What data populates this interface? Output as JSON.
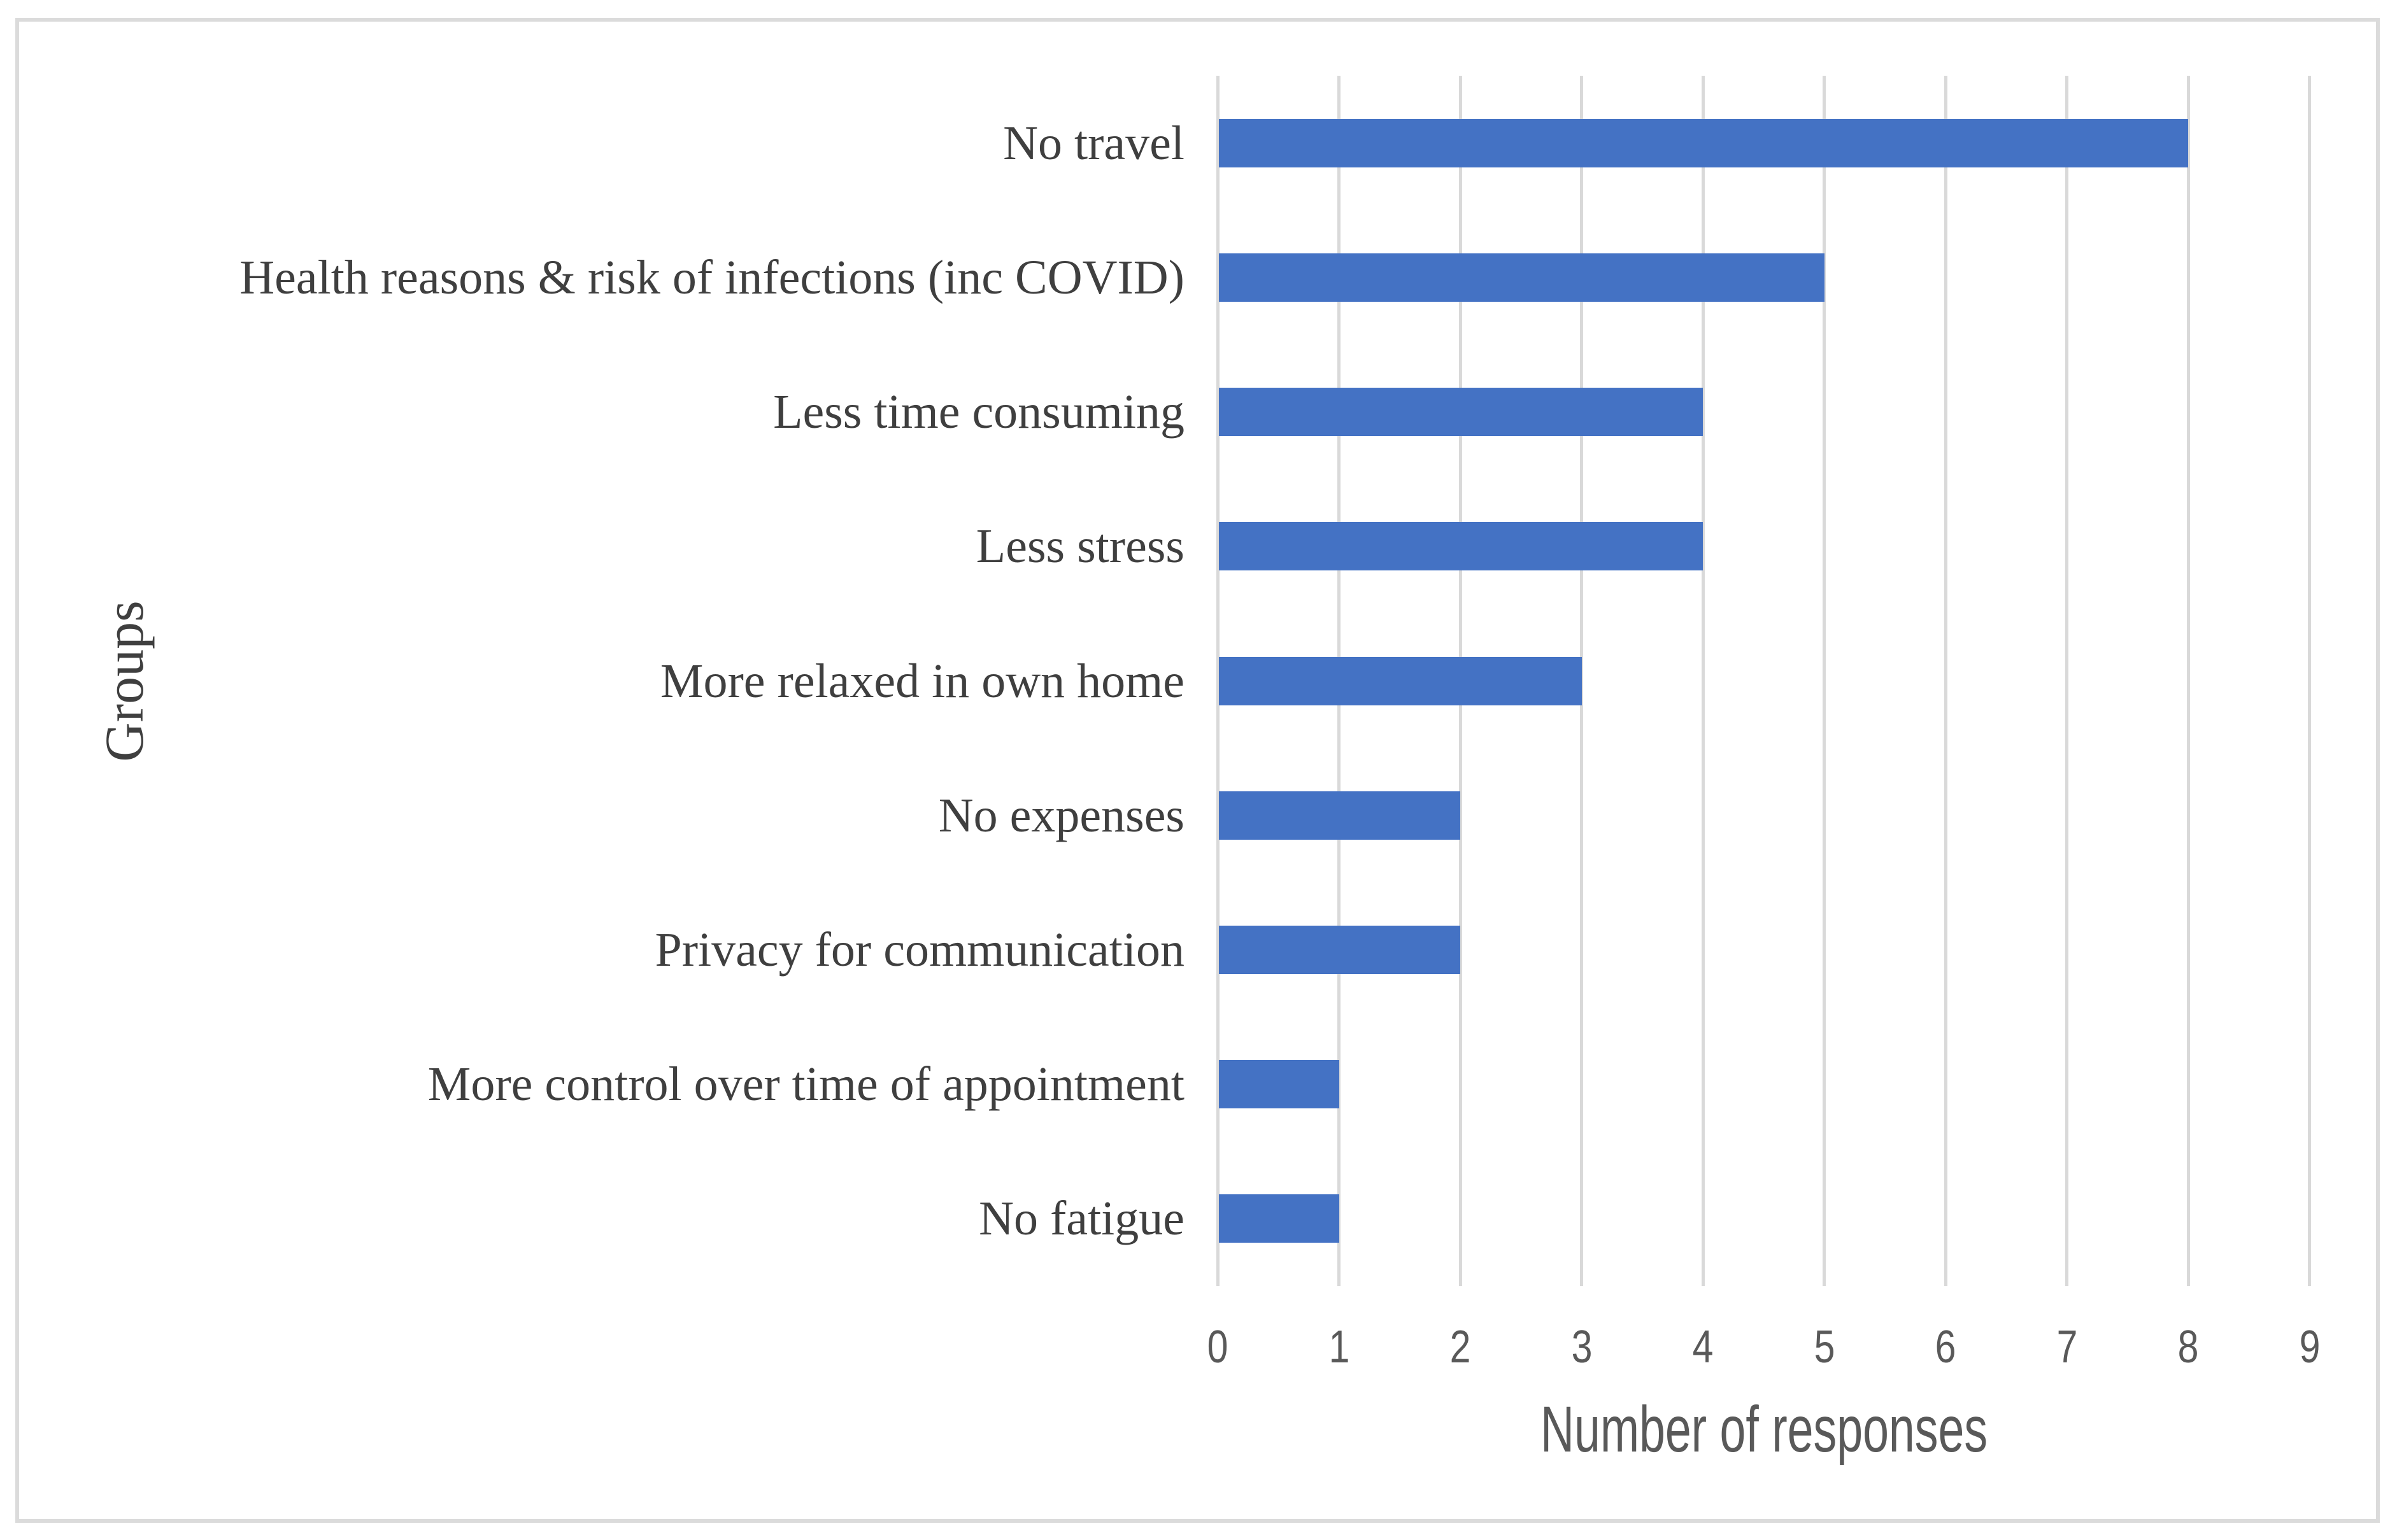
{
  "chart_data": {
    "type": "bar",
    "orientation": "horizontal",
    "title": "",
    "xlabel": "Number of responses",
    "ylabel": "Groups",
    "categories": [
      "No travel",
      "Health reasons & risk of infections (inc COVID)",
      "Less time consuming",
      "Less stress",
      "More relaxed in own home",
      "No expenses",
      "Privacy for communication",
      "More control over time of appointment",
      "No fatigue"
    ],
    "values": [
      8,
      5,
      4,
      4,
      3,
      2,
      2,
      1,
      1
    ],
    "xlim": [
      0,
      9
    ],
    "xticks": [
      "0",
      "1",
      "2",
      "3",
      "4",
      "5",
      "6",
      "7",
      "8",
      "9"
    ],
    "grid": "vertical",
    "legend": "none",
    "colors": {
      "bar": "#4472C4",
      "gridline": "#D9D9D9",
      "axis_text": "#595959",
      "category_text": "#3F3F3F",
      "frame_border": "#DBDBDB",
      "background": "#FFFFFF"
    }
  }
}
